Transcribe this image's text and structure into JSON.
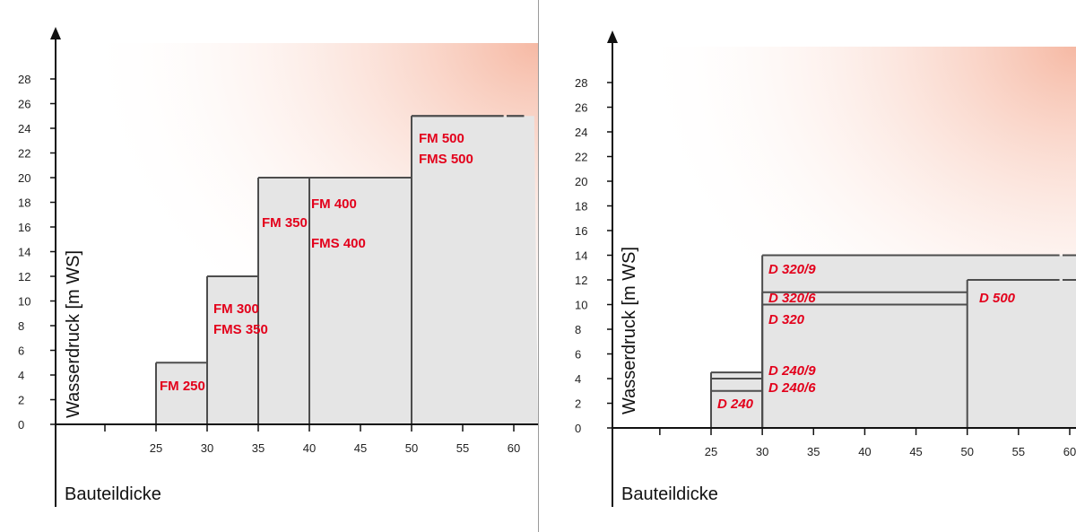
{
  "colors": {
    "accent": "#e3001b",
    "fill": "#e5e5e5",
    "step_line": "#4d4d4d",
    "axis": "#111111",
    "bg_tint": "#f6b9a4"
  },
  "chart_data": [
    {
      "type": "step",
      "xlabel": "Bauteildicke",
      "ylabel": "Wasserdruck [m WS]",
      "x_ticks": [
        25,
        30,
        35,
        40,
        45,
        50,
        55,
        60
      ],
      "y_ticks": [
        0,
        2,
        4,
        6,
        8,
        10,
        12,
        14,
        16,
        18,
        20,
        22,
        24,
        26,
        28
      ],
      "xlim": [
        20,
        62
      ],
      "ylim": [
        0,
        30
      ],
      "label_style": "bold",
      "series": [
        {
          "name": "FM 250",
          "points": [
            [
              25,
              5
            ],
            [
              30,
              5
            ]
          ]
        },
        {
          "name": "FM 300",
          "points": [
            [
              30,
              12
            ],
            [
              35,
              12
            ]
          ]
        },
        {
          "name": "FMS 350",
          "points": [
            [
              30,
              12
            ],
            [
              35,
              12
            ]
          ]
        },
        {
          "name": "FM 350",
          "points": [
            [
              35,
              20
            ],
            [
              40,
              20
            ]
          ]
        },
        {
          "name": "FM 400",
          "points": [
            [
              40,
              20
            ],
            [
              50,
              20
            ]
          ]
        },
        {
          "name": "FMS 400",
          "points": [
            [
              40,
              20
            ],
            [
              50,
              20
            ]
          ]
        },
        {
          "name": "FM 500",
          "points": [
            [
              50,
              25
            ],
            [
              60,
              25
            ]
          ]
        },
        {
          "name": "FMS 500",
          "points": [
            [
              50,
              25
            ],
            [
              60,
              25
            ]
          ]
        }
      ]
    },
    {
      "type": "step",
      "xlabel": "Bauteildicke",
      "ylabel": "Wasserdruck [m WS]",
      "x_ticks": [
        25,
        30,
        35,
        40,
        45,
        50,
        55,
        60
      ],
      "y_ticks": [
        0,
        2,
        4,
        6,
        8,
        10,
        12,
        14,
        16,
        18,
        20,
        22,
        24,
        26,
        28
      ],
      "xlim": [
        20,
        62
      ],
      "ylim": [
        0,
        30
      ],
      "label_style": "bold-italic",
      "series": [
        {
          "name": "D 240",
          "points": [
            [
              25,
              3
            ],
            [
              30,
              3
            ]
          ]
        },
        {
          "name": "D 240/6",
          "points": [
            [
              25,
              4
            ],
            [
              30,
              4
            ]
          ]
        },
        {
          "name": "D 240/9",
          "points": [
            [
              25,
              4.5
            ],
            [
              30,
              4.5
            ]
          ]
        },
        {
          "name": "D 320",
          "points": [
            [
              30,
              10
            ],
            [
              50,
              10
            ]
          ]
        },
        {
          "name": "D 320/6",
          "points": [
            [
              30,
              11
            ],
            [
              50,
              11
            ]
          ]
        },
        {
          "name": "D 320/9",
          "points": [
            [
              30,
              14
            ],
            [
              60,
              14
            ]
          ]
        },
        {
          "name": "D 500",
          "points": [
            [
              50,
              12
            ],
            [
              60,
              12
            ]
          ]
        }
      ]
    }
  ]
}
